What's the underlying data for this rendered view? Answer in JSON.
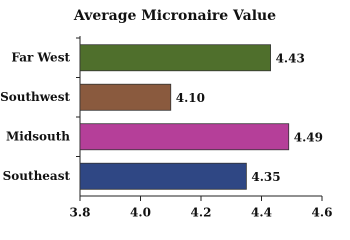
{
  "chart_data": {
    "type": "bar",
    "orientation": "horizontal",
    "title": "Average Micronaire Value",
    "categories": [
      "Far West",
      "Southwest",
      "Midsouth",
      "Southeast"
    ],
    "values": [
      4.43,
      4.1,
      4.49,
      4.35
    ],
    "value_labels": [
      "4.43",
      "4.10",
      "4.49",
      "4.35"
    ],
    "colors": [
      "#4f6f2c",
      "#8a5a3e",
      "#b53f99",
      "#2f4784"
    ],
    "xlim": [
      3.8,
      4.6
    ],
    "xticks": [
      3.8,
      {
        "value": 4,
        "label": "4.0"
      },
      4.2,
      4.4,
      4.6
    ]
  }
}
